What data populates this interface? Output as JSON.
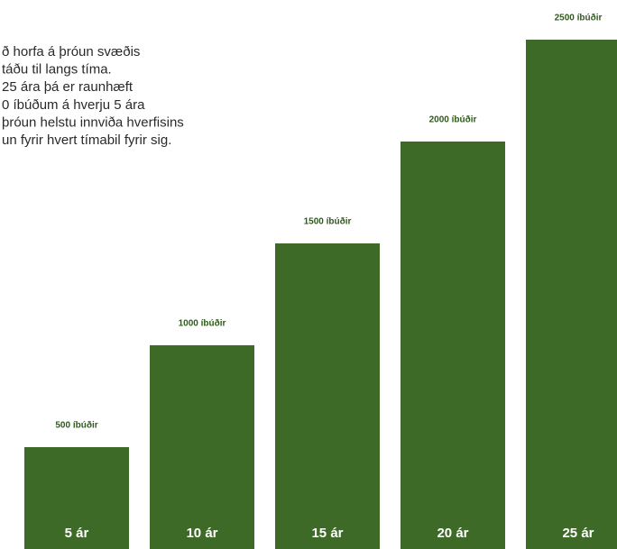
{
  "text": {
    "lines": [
      "ð horfa á þróun svæðis",
      "táðu til langs tíma.",
      "25 ára þá er raunhæft",
      "0 íbúðum á hverju 5 ára",
      "þróun helstu innviða hverfisins",
      "un fyrir hvert tímabil fyrir sig."
    ]
  },
  "chart_data": {
    "type": "bar",
    "categories": [
      "5 ár",
      "10 ár",
      "15 ár",
      "20 ár",
      "25 ár"
    ],
    "values": [
      500,
      1000,
      1500,
      2000,
      2500
    ],
    "value_labels": [
      "500 íbúðir",
      "1000 íbúðir",
      "1500 íbúðir",
      "2000 íbúðir",
      "2500 íbúðir"
    ],
    "color": "#3e6a27"
  }
}
